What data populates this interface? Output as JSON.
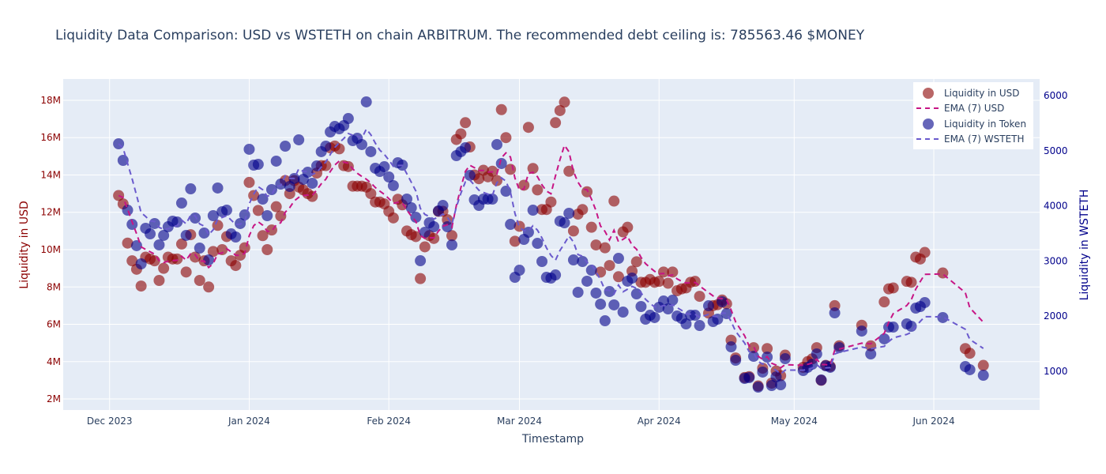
{
  "chart_data": {
    "type": "scatter",
    "title": "Liquidity Data Comparison: USD vs WSTETH on chain ARBITRUM. The recommended debt ceiling is: 785563.46 $MONEY",
    "xlabel": "Timestamp",
    "ylabel_left": "Liquidity in USD",
    "ylabel_right": "Liquidity in WSTETH",
    "x_origin": "2023-12-01",
    "x_unit": "days since origin",
    "xlim_days": [
      -10.3,
      206.5
    ],
    "ylim_left": [
      1410000,
      19140000
    ],
    "ylim_right": [
      298,
      6302
    ],
    "x_ticks": [
      {
        "day": 0,
        "label": "Dec 2023"
      },
      {
        "day": 31,
        "label": "Jan 2024"
      },
      {
        "day": 62,
        "label": "Feb 2024"
      },
      {
        "day": 91,
        "label": "Mar 2024"
      },
      {
        "day": 122,
        "label": "Apr 2024"
      },
      {
        "day": 152,
        "label": "May 2024"
      },
      {
        "day": 183,
        "label": "Jun 2024"
      }
    ],
    "y_ticks_left": [
      {
        "value": 2000000,
        "label": "2M"
      },
      {
        "value": 4000000,
        "label": "4M"
      },
      {
        "value": 6000000,
        "label": "6M"
      },
      {
        "value": 8000000,
        "label": "8M"
      },
      {
        "value": 10000000,
        "label": "10M"
      },
      {
        "value": 12000000,
        "label": "12M"
      },
      {
        "value": 14000000,
        "label": "14M"
      },
      {
        "value": 16000000,
        "label": "16M"
      },
      {
        "value": 18000000,
        "label": "18M"
      }
    ],
    "y_ticks_right": [
      {
        "value": 1000,
        "label": "1000"
      },
      {
        "value": 2000,
        "label": "2000"
      },
      {
        "value": 3000,
        "label": "3000"
      },
      {
        "value": 4000,
        "label": "4000"
      },
      {
        "value": 5000,
        "label": "5000"
      },
      {
        "value": 6000,
        "label": "6000"
      }
    ],
    "grid": true,
    "legend_position": "top-right",
    "ema_span": 7,
    "series": [
      {
        "name": "Liquidity in USD",
        "kind": "markers",
        "axis": "left",
        "color": "#8b0000"
      },
      {
        "name": "EMA (7) USD",
        "kind": "dashed-line",
        "axis": "left",
        "color": "#c71585"
      },
      {
        "name": "Liquidity in Token",
        "kind": "markers",
        "axis": "right",
        "color": "#00008b"
      },
      {
        "name": "EMA (7) WSTETH",
        "kind": "dashed-line",
        "axis": "right",
        "color": "#6a5acd"
      }
    ],
    "points_columns": [
      "day",
      "usd_millions",
      "wsteth"
    ],
    "points": [
      [
        2,
        12.9,
        5127
      ],
      [
        3,
        12.45,
        4826
      ],
      [
        4,
        10.35,
        3923
      ],
      [
        5,
        9.4,
        3665
      ],
      [
        6,
        8.95,
        3279
      ],
      [
        7,
        8.05,
        2949
      ],
      [
        8,
        9.6,
        3594
      ],
      [
        9,
        9.5,
        3493
      ],
      [
        10,
        9.4,
        3680
      ],
      [
        11,
        8.35,
        3293
      ],
      [
        12,
        9.0,
        3465
      ],
      [
        13,
        9.6,
        3622
      ],
      [
        14,
        9.5,
        3723
      ],
      [
        15,
        9.5,
        3708
      ],
      [
        16,
        10.3,
        4052
      ],
      [
        17,
        8.8,
        3465
      ],
      [
        18,
        10.8,
        4310
      ],
      [
        19,
        9.6,
        3780
      ],
      [
        20,
        8.35,
        3235
      ],
      [
        21,
        9.4,
        3508
      ],
      [
        22,
        8.0,
        3020
      ],
      [
        23,
        9.9,
        3823
      ],
      [
        24,
        11.3,
        4325
      ],
      [
        25,
        10.0,
        3895
      ],
      [
        26,
        10.7,
        3923
      ],
      [
        27,
        9.4,
        3493
      ],
      [
        28,
        9.15,
        3436
      ],
      [
        29,
        9.7,
        3680
      ],
      [
        30,
        10.1,
        3837
      ],
      [
        31,
        13.6,
        5027
      ],
      [
        32,
        12.9,
        4740
      ],
      [
        33,
        12.1,
        4754
      ],
      [
        34,
        10.75,
        4124
      ],
      [
        35,
        10.0,
        3823
      ],
      [
        36,
        11.05,
        4296
      ],
      [
        37,
        12.3,
        4812
      ],
      [
        38,
        11.8,
        4396
      ],
      [
        39,
        13.7,
        5084
      ],
      [
        40,
        13.0,
        4353
      ],
      [
        41,
        13.7,
        4497
      ],
      [
        42,
        13.35,
        5199
      ],
      [
        43,
        13.2,
        4482
      ],
      [
        44,
        13.0,
        4611
      ],
      [
        45,
        12.85,
        4411
      ],
      [
        46,
        14.1,
        4726
      ],
      [
        47,
        14.5,
        4984
      ],
      [
        48,
        14.5,
        5084
      ],
      [
        49,
        15.45,
        5342
      ],
      [
        50,
        15.55,
        5442
      ],
      [
        51,
        15.4,
        5399
      ],
      [
        52,
        14.5,
        5457
      ],
      [
        53,
        14.45,
        5585
      ],
      [
        54,
        13.4,
        5184
      ],
      [
        55,
        13.4,
        5227
      ],
      [
        56,
        13.4,
        5113
      ],
      [
        57,
        13.35,
        5887
      ],
      [
        58,
        13.0,
        4984
      ],
      [
        59,
        12.55,
        4683
      ],
      [
        60,
        12.55,
        4625
      ],
      [
        61,
        12.45,
        4711
      ],
      [
        62,
        12.05,
        4525
      ],
      [
        63,
        11.7,
        4368
      ],
      [
        64,
        12.7,
        4783
      ],
      [
        65,
        12.4,
        4740
      ],
      [
        66,
        11.0,
        4124
      ],
      [
        67,
        10.8,
        3966
      ],
      [
        68,
        10.7,
        3794
      ],
      [
        69,
        8.45,
        3006
      ],
      [
        70,
        10.15,
        3522
      ],
      [
        71,
        10.75,
        3694
      ],
      [
        72,
        10.6,
        3622
      ],
      [
        73,
        12.05,
        3909
      ],
      [
        74,
        12.05,
        4009
      ],
      [
        75,
        11.6,
        3622
      ],
      [
        76,
        10.75,
        3293
      ],
      [
        77,
        15.9,
        4912
      ],
      [
        78,
        16.2,
        4984
      ],
      [
        79,
        16.8,
        5056
      ],
      [
        80,
        15.5,
        4554
      ],
      [
        81,
        14.0,
        4110
      ],
      [
        82,
        13.8,
        4009
      ],
      [
        83,
        14.25,
        4124
      ],
      [
        84,
        13.9,
        4124
      ],
      [
        85,
        14.2,
        4124
      ],
      [
        86,
        13.7,
        5113
      ],
      [
        87,
        17.5,
        4769
      ],
      [
        88,
        16.0,
        4267
      ],
      [
        89,
        14.3,
        3665
      ],
      [
        90,
        10.45,
        2705
      ],
      [
        91,
        11.25,
        2834
      ],
      [
        92,
        13.45,
        3393
      ],
      [
        93,
        16.55,
        3522
      ],
      [
        94,
        14.35,
        3923
      ],
      [
        95,
        13.2,
        3321
      ],
      [
        96,
        12.15,
        2992
      ],
      [
        97,
        12.15,
        2705
      ],
      [
        98,
        12.55,
        2691
      ],
      [
        99,
        16.8,
        2748
      ],
      [
        100,
        17.45,
        3723
      ],
      [
        101,
        17.9,
        3694
      ],
      [
        102,
        14.2,
        3866
      ],
      [
        103,
        11.0,
        3020
      ],
      [
        104,
        11.9,
        2433
      ],
      [
        105,
        12.15,
        2992
      ],
      [
        106,
        13.1,
        2634
      ],
      [
        107,
        11.2,
        2834
      ],
      [
        108,
        10.25,
        2419
      ],
      [
        109,
        8.8,
        2218
      ],
      [
        110,
        10.1,
        1917
      ],
      [
        111,
        9.15,
        2447
      ],
      [
        112,
        12.6,
        2204
      ],
      [
        113,
        8.55,
        3049
      ],
      [
        114,
        10.95,
        2075
      ],
      [
        115,
        11.2,
        2634
      ],
      [
        116,
        8.85,
        2691
      ],
      [
        117,
        9.35,
        2404
      ],
      [
        118,
        8.25,
        2175
      ],
      [
        119,
        8.25,
        1946
      ],
      [
        120,
        8.4,
        2017
      ],
      [
        121,
        8.25,
        1975
      ],
      [
        122,
        8.3,
        2161
      ],
      [
        123,
        8.8,
        2275
      ],
      [
        124,
        8.2,
        2132
      ],
      [
        125,
        8.8,
        2290
      ],
      [
        126,
        7.8,
        2003
      ],
      [
        127,
        7.9,
        1960
      ],
      [
        128,
        7.95,
        1860
      ],
      [
        129,
        8.25,
        2017
      ],
      [
        130,
        8.3,
        2017
      ],
      [
        131,
        7.5,
        1831
      ],
      [
        133,
        6.6,
        2189
      ],
      [
        134,
        7.0,
        1903
      ],
      [
        135,
        7.05,
        1946
      ],
      [
        136,
        7.3,
        2261
      ],
      [
        137,
        7.1,
        2046
      ],
      [
        138,
        5.15,
        1444
      ],
      [
        139,
        4.2,
        1200
      ],
      [
        141,
        3.15,
        871
      ],
      [
        142,
        3.2,
        885
      ],
      [
        143,
        4.75,
        1272
      ],
      [
        144,
        2.7,
        713
      ],
      [
        145,
        3.65,
        986
      ],
      [
        146,
        4.7,
        1258
      ],
      [
        147,
        2.85,
        742
      ],
      [
        148,
        3.5,
        900
      ],
      [
        149,
        3.25,
        756
      ],
      [
        150,
        4.35,
        1229
      ],
      [
        154,
        3.7,
        1014
      ],
      [
        155,
        4.0,
        1072
      ],
      [
        156,
        4.15,
        1129
      ],
      [
        157,
        4.75,
        1315
      ],
      [
        158,
        3.0,
        842
      ],
      [
        159,
        3.8,
        1100
      ],
      [
        160,
        3.75,
        1072
      ],
      [
        161,
        7.0,
        2060
      ],
      [
        162,
        4.85,
        1430
      ],
      [
        167,
        5.95,
        1730
      ],
      [
        169,
        4.85,
        1315
      ],
      [
        172,
        7.2,
        1588
      ],
      [
        173,
        7.9,
        1802
      ],
      [
        174,
        7.95,
        1802
      ],
      [
        177,
        8.3,
        1860
      ],
      [
        178,
        8.25,
        1817
      ],
      [
        179,
        9.6,
        2146
      ],
      [
        180,
        9.5,
        2175
      ],
      [
        181,
        9.85,
        2247
      ],
      [
        185,
        8.75,
        1975
      ],
      [
        190,
        4.7,
        1086
      ],
      [
        191,
        4.45,
        1029
      ],
      [
        194,
        3.8,
        928
      ]
    ]
  }
}
